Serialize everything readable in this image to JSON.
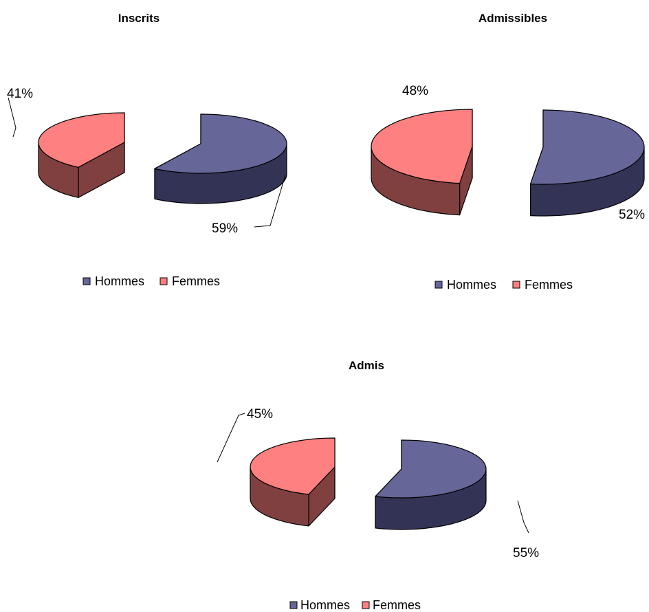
{
  "colors": {
    "hommes_top": "#666699",
    "hommes_side": "#333355",
    "femmes_top": "#FF8080",
    "femmes_side": "#804040"
  },
  "chart_data": [
    {
      "type": "pie",
      "title": "Inscrits",
      "series": [
        {
          "name": "Hommes",
          "value": 59,
          "label": "59%"
        },
        {
          "name": "Femmes",
          "value": 41,
          "label": "41%"
        }
      ],
      "legend": {
        "placement": "bottom",
        "entries": [
          "Hommes",
          "Femmes"
        ]
      },
      "exploded": true,
      "three_d": true
    },
    {
      "type": "pie",
      "title": "Admissibles",
      "series": [
        {
          "name": "Hommes",
          "value": 52,
          "label": "52%"
        },
        {
          "name": "Femmes",
          "value": 48,
          "label": "48%"
        }
      ],
      "legend": {
        "placement": "bottom",
        "entries": [
          "Hommes",
          "Femmes"
        ]
      },
      "exploded": true,
      "three_d": true
    },
    {
      "type": "pie",
      "title": "Admis",
      "series": [
        {
          "name": "Hommes",
          "value": 55,
          "label": "55%"
        },
        {
          "name": "Femmes",
          "value": 45,
          "label": "45%"
        }
      ],
      "legend": {
        "placement": "bottom",
        "entries": [
          "Hommes",
          "Femmes"
        ]
      },
      "exploded": true,
      "three_d": true
    }
  ]
}
